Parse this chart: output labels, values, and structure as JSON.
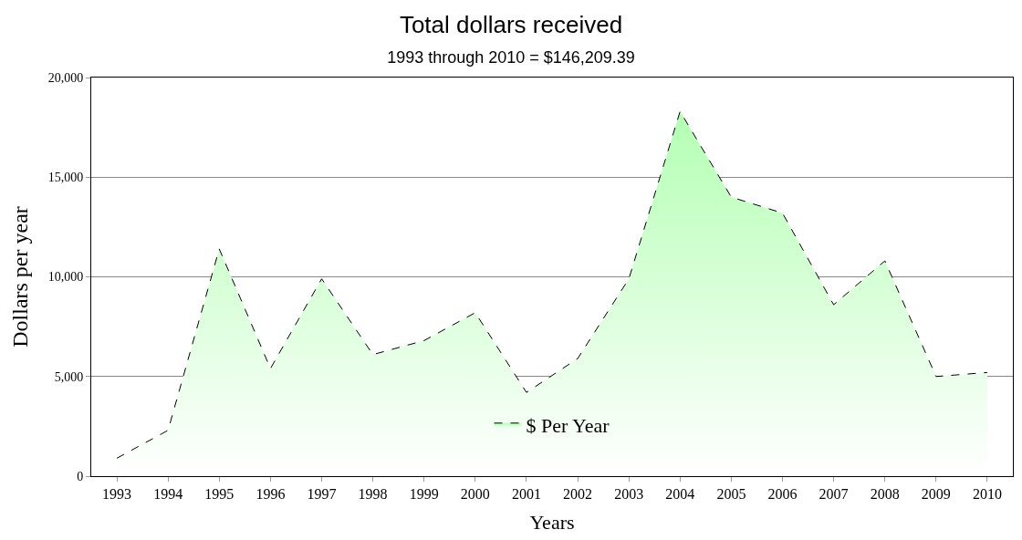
{
  "chart_data": {
    "type": "area",
    "title": "Total dollars received",
    "subtitle": "1993 through 2010 = $146,209.39",
    "xlabel": "Years",
    "ylabel": "Dollars per year",
    "categories": [
      "1993",
      "1994",
      "1995",
      "1996",
      "1997",
      "1998",
      "1999",
      "2000",
      "2001",
      "2002",
      "2003",
      "2004",
      "2005",
      "2006",
      "2007",
      "2008",
      "2009",
      "2010"
    ],
    "series": [
      {
        "name": "$ Per Year",
        "color": "#b3ffb3",
        "values": [
          900,
          2300,
          11400,
          5400,
          9900,
          6100,
          6800,
          8200,
          4200,
          5900,
          9900,
          18300,
          14000,
          13200,
          8600,
          10800,
          5000,
          5200
        ]
      }
    ],
    "ylim": [
      0,
      20000
    ],
    "yticks": [
      0,
      {
        "value": 5000,
        "label": "5,000"
      },
      {
        "value": 10000,
        "label": "10,000"
      },
      {
        "value": 15000,
        "label": "15,000"
      },
      {
        "value": 20000,
        "label": "20,000"
      }
    ],
    "grid": "y",
    "legend": "bottom",
    "line_style": "dashed",
    "marker": "none"
  }
}
